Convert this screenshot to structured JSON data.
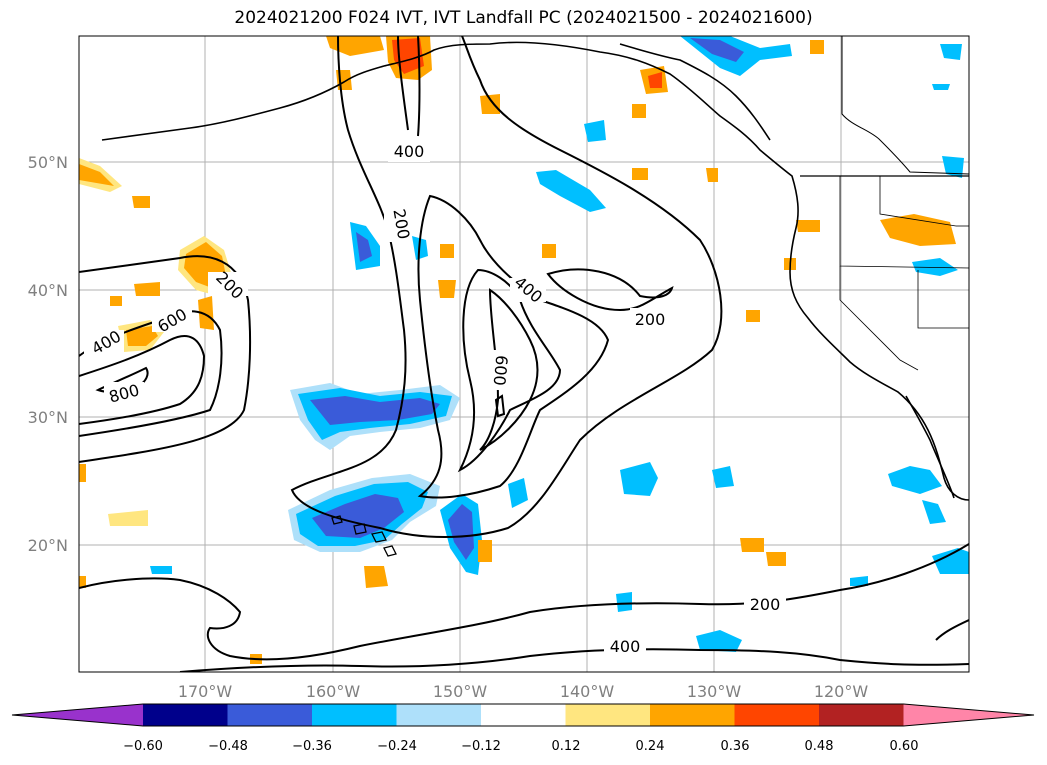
{
  "title": "2024021200 F024 IVT, IVT Landfall PC (2024021500 - 2024021600)",
  "lat_labels": [
    "50°N",
    "40°N",
    "30°N",
    "20°N"
  ],
  "lon_labels": [
    "170°W",
    "160°W",
    "150°W",
    "140°W",
    "130°W",
    "120°W"
  ],
  "contour_labels": [
    "400",
    "200",
    "200",
    "400",
    "200",
    "400",
    "600",
    "800",
    "600",
    "200",
    "400"
  ],
  "colorbar": {
    "ticks": [
      "−0.60",
      "−0.48",
      "−0.36",
      "−0.24",
      "−0.12",
      "0.12",
      "0.24",
      "0.36",
      "0.48",
      "0.60"
    ],
    "colors": [
      "#9932cc",
      "#00008b",
      "#3a5bd9",
      "#00bfff",
      "#aee0fa",
      "#ffffff",
      "#ffe680",
      "#ffa500",
      "#ff4500",
      "#b22222",
      "#ff85a8"
    ]
  }
}
